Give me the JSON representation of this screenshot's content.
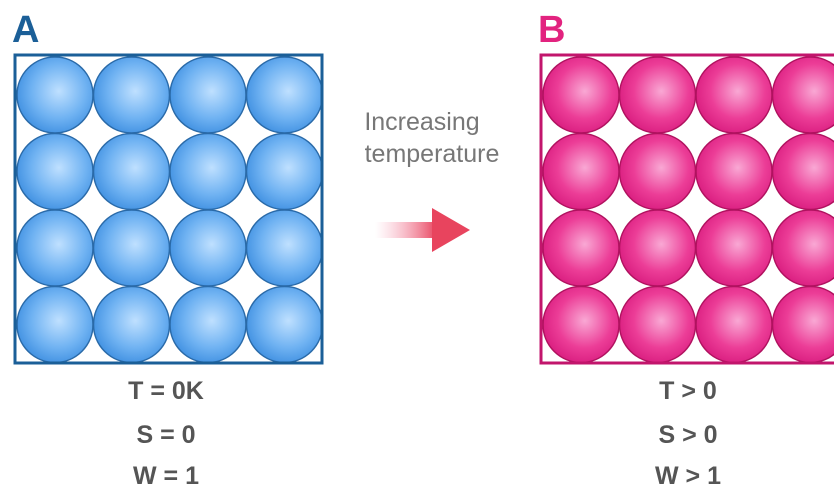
{
  "panels": [
    {
      "label": "A",
      "lines": [
        "T = 0K",
        "S = 0",
        "W = 1"
      ]
    },
    {
      "label": "B",
      "lines": [
        "T > 0",
        "S > 0",
        "W > 1"
      ]
    }
  ],
  "arrow_label": [
    "Increasing",
    "temperature"
  ]
}
